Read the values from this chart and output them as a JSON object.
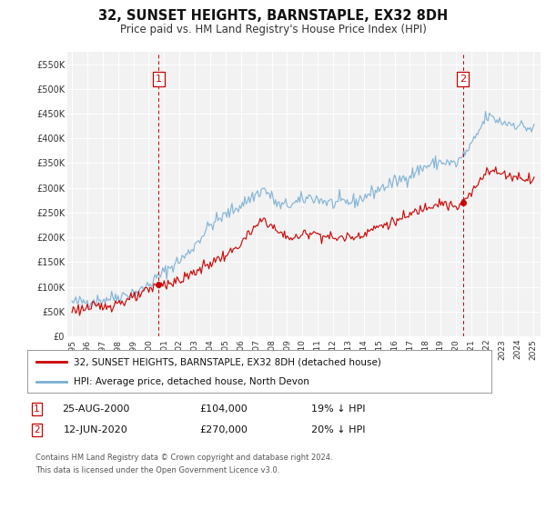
{
  "title": "32, SUNSET HEIGHTS, BARNSTAPLE, EX32 8DH",
  "subtitle": "Price paid vs. HM Land Registry's House Price Index (HPI)",
  "title_fontsize": 10.5,
  "subtitle_fontsize": 8.5,
  "background_color": "#ffffff",
  "plot_bg_color": "#f2f2f2",
  "grid_color": "#ffffff",
  "ylim": [
    0,
    575000
  ],
  "yticks": [
    0,
    50000,
    100000,
    150000,
    200000,
    250000,
    300000,
    350000,
    400000,
    450000,
    500000,
    550000
  ],
  "ytick_labels": [
    "£0",
    "£50K",
    "£100K",
    "£150K",
    "£200K",
    "£250K",
    "£300K",
    "£350K",
    "£400K",
    "£450K",
    "£500K",
    "£550K"
  ],
  "xlim_start": 1994.7,
  "xlim_end": 2025.5,
  "xticks": [
    1995,
    1996,
    1997,
    1998,
    1999,
    2000,
    2001,
    2002,
    2003,
    2004,
    2005,
    2006,
    2007,
    2008,
    2009,
    2010,
    2011,
    2012,
    2013,
    2014,
    2015,
    2016,
    2017,
    2018,
    2019,
    2020,
    2021,
    2022,
    2023,
    2024,
    2025
  ],
  "red_line_color": "#cc0000",
  "blue_line_color": "#7aafd4",
  "sale1_x": 2000.646,
  "sale1_y": 104000,
  "sale1_label": "1",
  "sale1_date": "25-AUG-2000",
  "sale1_price": "£104,000",
  "sale1_hpi": "19% ↓ HPI",
  "sale2_x": 2020.45,
  "sale2_y": 270000,
  "sale2_label": "2",
  "sale2_date": "12-JUN-2020",
  "sale2_price": "£270,000",
  "sale2_hpi": "20% ↓ HPI",
  "legend_line1": "32, SUNSET HEIGHTS, BARNSTAPLE, EX32 8DH (detached house)",
  "legend_line2": "HPI: Average price, detached house, North Devon",
  "footer_line1": "Contains HM Land Registry data © Crown copyright and database right 2024.",
  "footer_line2": "This data is licensed under the Open Government Licence v3.0.",
  "hpi_anchors_x": [
    1995.0,
    1997.0,
    1999.5,
    2001.0,
    2002.5,
    2004.0,
    2005.5,
    2007.5,
    2008.5,
    2009.5,
    2010.5,
    2012.0,
    2013.5,
    2015.0,
    2016.5,
    2018.0,
    2019.0,
    2020.0,
    2021.0,
    2022.0,
    2023.0,
    2024.0,
    2025.0
  ],
  "hpi_anchors_y": [
    68000,
    74000,
    92000,
    130000,
    165000,
    225000,
    255000,
    298000,
    263000,
    268000,
    282000,
    268000,
    273000,
    298000,
    318000,
    343000,
    353000,
    348000,
    385000,
    445000,
    433000,
    428000,
    418000
  ],
  "red_anchors_x": [
    1995.0,
    1997.0,
    1999.0,
    2000.646,
    2002.0,
    2004.0,
    2005.5,
    2007.5,
    2008.5,
    2009.5,
    2010.5,
    2012.0,
    2013.5,
    2015.0,
    2016.5,
    2018.0,
    2019.0,
    2020.0,
    2020.45,
    2021.0,
    2022.0,
    2023.0,
    2024.0,
    2025.0
  ],
  "red_anchors_y": [
    54000,
    60000,
    76000,
    104000,
    112000,
    148000,
    172000,
    238000,
    208000,
    197000,
    212000,
    198000,
    202000,
    222000,
    237000,
    262000,
    272000,
    258000,
    270000,
    288000,
    338000,
    328000,
    322000,
    318000
  ],
  "hpi_noise_seed": 42,
  "hpi_noise_std": 7000,
  "red_noise_seed": 123,
  "red_noise_std": 5500
}
